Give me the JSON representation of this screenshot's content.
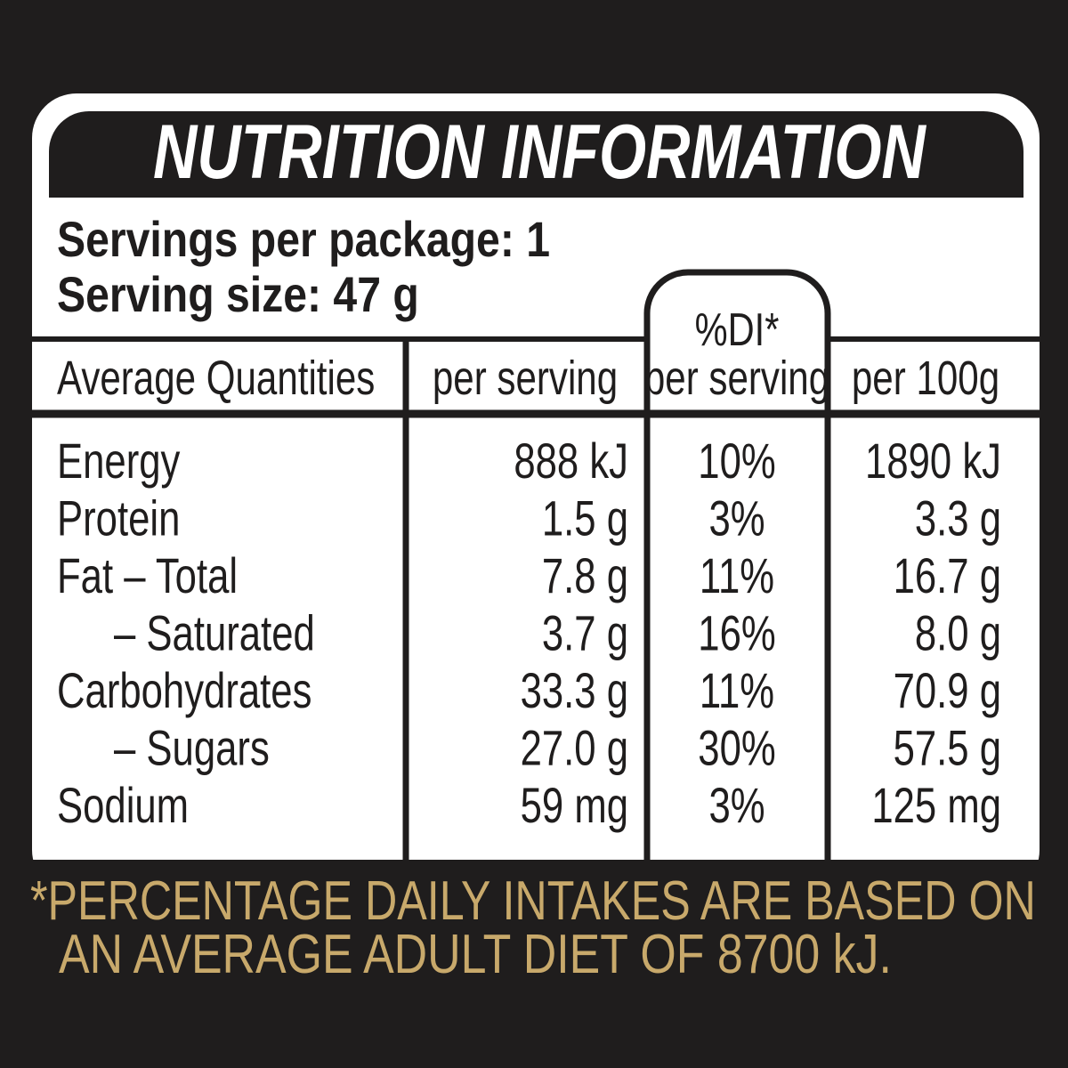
{
  "title": "NUTRITION INFORMATION",
  "servings": [
    "Servings per package: 1",
    "Serving size: 47 g"
  ],
  "table": {
    "di_label": "%DI*",
    "columns": [
      "Average Quantities",
      "per serving",
      "per serving",
      "per 100g"
    ],
    "rows": [
      [
        "Energy",
        "888 kJ",
        "10%",
        "1890 kJ"
      ],
      [
        "Protein",
        "1.5 g",
        "3%",
        "3.3 g"
      ],
      [
        "Fat – Total",
        "7.8 g",
        "11%",
        "16.7 g"
      ],
      [
        "– Saturated",
        "3.7 g",
        "16%",
        "8.0 g"
      ],
      [
        "Carbohydrates",
        "33.3 g",
        "11%",
        "70.9 g"
      ],
      [
        "– Sugars",
        "27.0 g",
        "30%",
        "57.5 g"
      ],
      [
        "Sodium",
        "59 mg",
        "3%",
        "125 mg"
      ]
    ]
  },
  "footnote": [
    "*PERCENTAGE DAILY INTAKES ARE BASED ON",
    "AN AVERAGE ADULT DIET OF 8700 kJ."
  ]
}
